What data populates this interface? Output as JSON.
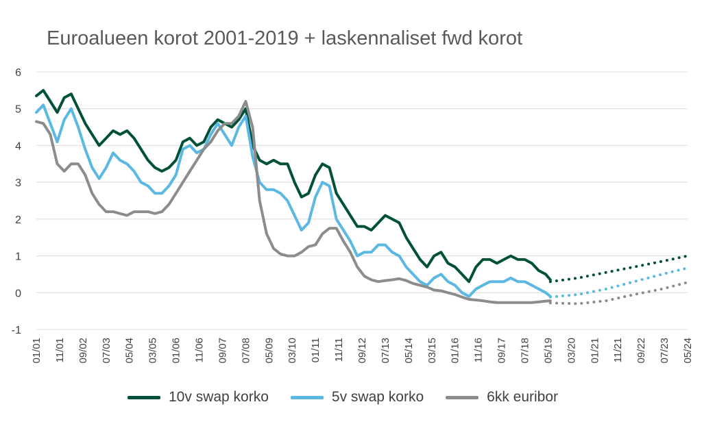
{
  "chart_data": {
    "type": "line",
    "title": "Euroalueen korot 2001-2019 + laskennaliset fwd korot",
    "xlabel": "",
    "ylabel": "",
    "ylim": [
      -1,
      6
    ],
    "yticks": [
      -1,
      0,
      1,
      2,
      3,
      4,
      5,
      6
    ],
    "xlim": [
      "2001-01",
      "2024-05"
    ],
    "xtick_labels": [
      "01/01",
      "11/01",
      "09/02",
      "07/03",
      "05/04",
      "03/05",
      "01/06",
      "11/06",
      "09/07",
      "07/08",
      "05/09",
      "03/10",
      "01/11",
      "11/11",
      "09/12",
      "07/13",
      "05/14",
      "03/15",
      "01/16",
      "11/16",
      "09/17",
      "07/18",
      "05/19",
      "03/20",
      "01/21",
      "11/21",
      "09/22",
      "07/23",
      "05/24"
    ],
    "grid": "horizontal",
    "legend_position": "bottom",
    "colors": {
      "swap10": "#00503a",
      "swap5": "#5ab8e3",
      "euribor6": "#8c8c8c"
    },
    "series": [
      {
        "name": "10v swap korko",
        "color": "#00503a",
        "x": [
          "2001-01",
          "2001-04",
          "2001-07",
          "2001-10",
          "2002-01",
          "2002-04",
          "2002-07",
          "2002-10",
          "2003-01",
          "2003-04",
          "2003-07",
          "2003-10",
          "2004-01",
          "2004-04",
          "2004-07",
          "2004-10",
          "2005-01",
          "2005-04",
          "2005-07",
          "2005-10",
          "2006-01",
          "2006-04",
          "2006-07",
          "2006-10",
          "2007-01",
          "2007-04",
          "2007-07",
          "2007-10",
          "2008-01",
          "2008-04",
          "2008-07",
          "2008-10",
          "2009-01",
          "2009-04",
          "2009-07",
          "2009-10",
          "2010-01",
          "2010-04",
          "2010-07",
          "2010-10",
          "2011-01",
          "2011-04",
          "2011-07",
          "2011-10",
          "2012-01",
          "2012-04",
          "2012-07",
          "2012-10",
          "2013-01",
          "2013-04",
          "2013-07",
          "2013-10",
          "2014-01",
          "2014-04",
          "2014-07",
          "2014-10",
          "2015-01",
          "2015-04",
          "2015-07",
          "2015-10",
          "2016-01",
          "2016-04",
          "2016-07",
          "2016-10",
          "2017-01",
          "2017-04",
          "2017-07",
          "2017-10",
          "2018-01",
          "2018-04",
          "2018-07",
          "2018-10",
          "2019-01",
          "2019-04",
          "2019-06"
        ],
        "values": [
          5.35,
          5.5,
          5.2,
          4.9,
          5.3,
          5.4,
          5.0,
          4.6,
          4.3,
          4.0,
          4.2,
          4.4,
          4.3,
          4.4,
          4.2,
          3.9,
          3.6,
          3.4,
          3.3,
          3.4,
          3.6,
          4.1,
          4.2,
          4.0,
          4.1,
          4.5,
          4.7,
          4.6,
          4.5,
          4.7,
          5.0,
          4.0,
          3.6,
          3.5,
          3.6,
          3.5,
          3.5,
          3.0,
          2.6,
          2.7,
          3.2,
          3.5,
          3.4,
          2.7,
          2.4,
          2.1,
          1.8,
          1.8,
          1.7,
          1.9,
          2.1,
          2.0,
          1.9,
          1.5,
          1.2,
          0.9,
          0.7,
          1.0,
          1.1,
          0.8,
          0.7,
          0.5,
          0.3,
          0.7,
          0.9,
          0.9,
          0.8,
          0.9,
          1.0,
          0.9,
          0.9,
          0.8,
          0.6,
          0.5,
          0.35
        ]
      },
      {
        "name": "5v swap korko",
        "color": "#5ab8e3",
        "x": [
          "2001-01",
          "2001-04",
          "2001-07",
          "2001-10",
          "2002-01",
          "2002-04",
          "2002-07",
          "2002-10",
          "2003-01",
          "2003-04",
          "2003-07",
          "2003-10",
          "2004-01",
          "2004-04",
          "2004-07",
          "2004-10",
          "2005-01",
          "2005-04",
          "2005-07",
          "2005-10",
          "2006-01",
          "2006-04",
          "2006-07",
          "2006-10",
          "2007-01",
          "2007-04",
          "2007-07",
          "2007-10",
          "2008-01",
          "2008-04",
          "2008-07",
          "2008-10",
          "2009-01",
          "2009-04",
          "2009-07",
          "2009-10",
          "2010-01",
          "2010-04",
          "2010-07",
          "2010-10",
          "2011-01",
          "2011-04",
          "2011-07",
          "2011-10",
          "2012-01",
          "2012-04",
          "2012-07",
          "2012-10",
          "2013-01",
          "2013-04",
          "2013-07",
          "2013-10",
          "2014-01",
          "2014-04",
          "2014-07",
          "2014-10",
          "2015-01",
          "2015-04",
          "2015-07",
          "2015-10",
          "2016-01",
          "2016-04",
          "2016-07",
          "2016-10",
          "2017-01",
          "2017-04",
          "2017-07",
          "2017-10",
          "2018-01",
          "2018-04",
          "2018-07",
          "2018-10",
          "2019-01",
          "2019-04",
          "2019-06"
        ],
        "values": [
          4.9,
          5.1,
          4.6,
          4.1,
          4.7,
          5.0,
          4.5,
          3.9,
          3.4,
          3.1,
          3.4,
          3.8,
          3.6,
          3.5,
          3.3,
          3.0,
          2.9,
          2.7,
          2.7,
          2.9,
          3.2,
          3.9,
          4.0,
          3.8,
          3.9,
          4.3,
          4.6,
          4.3,
          4.0,
          4.5,
          4.8,
          3.7,
          3.0,
          2.8,
          2.8,
          2.7,
          2.5,
          2.1,
          1.7,
          1.9,
          2.6,
          3.0,
          2.9,
          2.0,
          1.7,
          1.4,
          1.0,
          1.1,
          1.1,
          1.3,
          1.3,
          1.1,
          1.0,
          0.7,
          0.5,
          0.3,
          0.2,
          0.4,
          0.5,
          0.3,
          0.2,
          0.0,
          -0.1,
          0.1,
          0.2,
          0.3,
          0.3,
          0.3,
          0.4,
          0.3,
          0.3,
          0.2,
          0.1,
          0.0,
          -0.1
        ]
      },
      {
        "name": "6kk euribor",
        "color": "#8c8c8c",
        "x": [
          "2001-01",
          "2001-04",
          "2001-07",
          "2001-10",
          "2002-01",
          "2002-04",
          "2002-07",
          "2002-10",
          "2003-01",
          "2003-04",
          "2003-07",
          "2003-10",
          "2004-01",
          "2004-04",
          "2004-07",
          "2004-10",
          "2005-01",
          "2005-04",
          "2005-07",
          "2005-10",
          "2006-01",
          "2006-04",
          "2006-07",
          "2006-10",
          "2007-01",
          "2007-04",
          "2007-07",
          "2007-10",
          "2008-01",
          "2008-04",
          "2008-07",
          "2008-10",
          "2009-01",
          "2009-04",
          "2009-07",
          "2009-10",
          "2010-01",
          "2010-04",
          "2010-07",
          "2010-10",
          "2011-01",
          "2011-04",
          "2011-07",
          "2011-10",
          "2012-01",
          "2012-04",
          "2012-07",
          "2012-10",
          "2013-01",
          "2013-04",
          "2013-07",
          "2013-10",
          "2014-01",
          "2014-04",
          "2014-07",
          "2014-10",
          "2015-01",
          "2015-04",
          "2015-07",
          "2015-10",
          "2016-01",
          "2016-04",
          "2016-07",
          "2016-10",
          "2017-01",
          "2017-04",
          "2017-07",
          "2017-10",
          "2018-01",
          "2018-04",
          "2018-07",
          "2018-10",
          "2019-01",
          "2019-04",
          "2019-06"
        ],
        "values": [
          4.65,
          4.6,
          4.3,
          3.5,
          3.3,
          3.5,
          3.5,
          3.2,
          2.7,
          2.4,
          2.2,
          2.2,
          2.15,
          2.1,
          2.2,
          2.2,
          2.2,
          2.15,
          2.2,
          2.4,
          2.7,
          3.0,
          3.3,
          3.6,
          3.9,
          4.1,
          4.4,
          4.6,
          4.6,
          4.8,
          5.2,
          4.5,
          2.5,
          1.6,
          1.2,
          1.05,
          1.0,
          1.0,
          1.1,
          1.25,
          1.3,
          1.6,
          1.75,
          1.75,
          1.4,
          1.1,
          0.7,
          0.45,
          0.35,
          0.3,
          0.33,
          0.35,
          0.38,
          0.33,
          0.25,
          0.2,
          0.15,
          0.07,
          0.05,
          0.0,
          -0.05,
          -0.12,
          -0.18,
          -0.2,
          -0.22,
          -0.25,
          -0.27,
          -0.27,
          -0.27,
          -0.27,
          -0.27,
          -0.27,
          -0.25,
          -0.23,
          -0.22
        ]
      },
      {
        "name": "",
        "color": "#00503a",
        "dashed": true,
        "x": [
          "2019-06",
          "2020-06",
          "2021-06",
          "2022-06",
          "2023-06",
          "2024-05"
        ],
        "values": [
          0.3,
          0.4,
          0.55,
          0.7,
          0.85,
          1.0
        ]
      },
      {
        "name": "",
        "color": "#5ab8e3",
        "dashed": true,
        "x": [
          "2019-06",
          "2020-06",
          "2021-06",
          "2022-06",
          "2023-06",
          "2024-05"
        ],
        "values": [
          -0.12,
          -0.05,
          0.1,
          0.3,
          0.5,
          0.67
        ]
      },
      {
        "name": "",
        "color": "#8c8c8c",
        "dashed": true,
        "x": [
          "2019-06",
          "2020-06",
          "2021-06",
          "2022-06",
          "2023-06",
          "2024-05"
        ],
        "values": [
          -0.28,
          -0.3,
          -0.22,
          -0.05,
          0.1,
          0.28
        ]
      }
    ],
    "legend": [
      {
        "label": "10v swap korko",
        "color": "#00503a"
      },
      {
        "label": "5v swap korko",
        "color": "#5ab8e3"
      },
      {
        "label": "6kk euribor",
        "color": "#8c8c8c"
      }
    ]
  }
}
